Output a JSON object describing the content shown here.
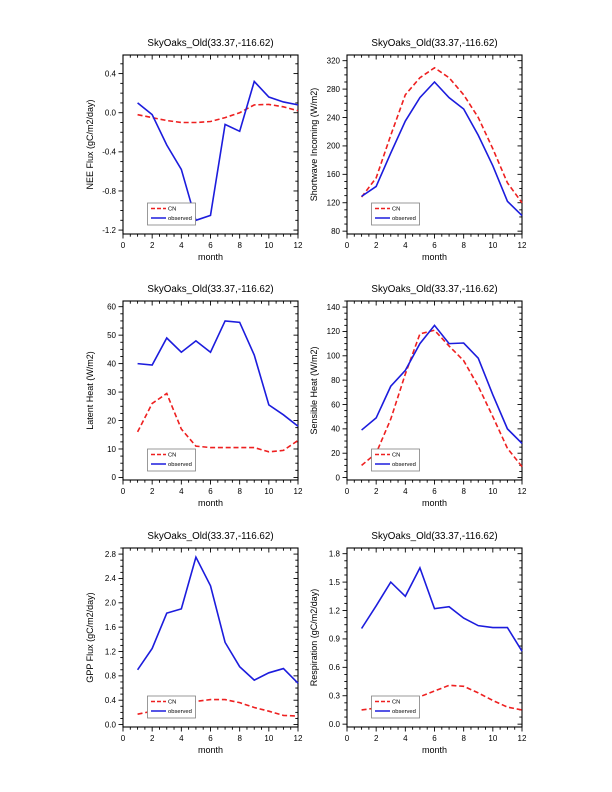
{
  "page": {
    "background": "#ffffff"
  },
  "legend": {
    "entries": [
      "CN",
      "observed"
    ],
    "position": "lower-left"
  },
  "chart_data": [
    {
      "type": "line",
      "title": "SkyOaks_Old(33.37,-116.62)",
      "xlabel": "month",
      "ylabel": "NEE Flux (gC/m2/day)",
      "xlim": [
        0,
        12
      ],
      "ylim": [
        -1.24,
        0.59
      ],
      "xticks": [
        0,
        2,
        4,
        6,
        8,
        10,
        12
      ],
      "xminor": 0.5,
      "yticks": [
        -1.2,
        -0.8,
        -0.4,
        0.0,
        0.4
      ],
      "ytick_labels": [
        "-1.2",
        "-0.8",
        "-0.4",
        "0.0",
        "0.4"
      ],
      "yminor": 0.1,
      "x": [
        1,
        2,
        3,
        4,
        5,
        6,
        7,
        8,
        9,
        10,
        11,
        12
      ],
      "grid": false,
      "legend_position": "lower-left",
      "series": [
        {
          "name": "CN",
          "color": "#ee2020",
          "style": "dashed",
          "values": [
            -0.02,
            -0.05,
            -0.08,
            -0.1,
            -0.1,
            -0.09,
            -0.05,
            0.0,
            0.08,
            0.085,
            0.06,
            0.02
          ]
        },
        {
          "name": "observed",
          "color": "#1c1cdd",
          "style": "solid",
          "values": [
            0.1,
            -0.02,
            -0.33,
            -0.58,
            -1.1,
            -1.05,
            -0.12,
            -0.19,
            0.32,
            0.16,
            0.11,
            0.08
          ]
        }
      ]
    },
    {
      "type": "line",
      "title": "SkyOaks_Old(33.37,-116.62)",
      "xlabel": "month",
      "ylabel": "Shortwave Incoming (W/m2)",
      "xlim": [
        0,
        12
      ],
      "ylim": [
        76,
        328
      ],
      "xticks": [
        0,
        2,
        4,
        6,
        8,
        10,
        12
      ],
      "xminor": 0.5,
      "yticks": [
        80,
        120,
        160,
        200,
        240,
        280,
        320
      ],
      "ytick_labels": [
        "80",
        "120",
        "160",
        "200",
        "240",
        "280",
        "320"
      ],
      "yminor": 10,
      "x": [
        1,
        2,
        3,
        4,
        5,
        6,
        7,
        8,
        9,
        10,
        11,
        12
      ],
      "grid": false,
      "legend_position": "lower-left",
      "series": [
        {
          "name": "CN",
          "color": "#ee2020",
          "style": "dashed",
          "values": [
            128,
            155,
            215,
            272,
            296,
            310,
            296,
            272,
            240,
            196,
            148,
            120
          ]
        },
        {
          "name": "observed",
          "color": "#1c1cdd",
          "style": "solid",
          "values": [
            129,
            143,
            190,
            235,
            268,
            290,
            268,
            252,
            215,
            172,
            122,
            102
          ]
        }
      ]
    },
    {
      "type": "line",
      "title": "SkyOaks_Old(33.37,-116.62)",
      "xlabel": "month",
      "ylabel": "Latent Heat (W/m2)",
      "xlim": [
        0,
        12
      ],
      "ylim": [
        -0.9,
        62
      ],
      "xticks": [
        0,
        2,
        4,
        6,
        8,
        10,
        12
      ],
      "xminor": 0.5,
      "yticks": [
        0,
        10,
        20,
        30,
        40,
        50,
        60
      ],
      "ytick_labels": [
        "0",
        "10",
        "20",
        "30",
        "40",
        "50",
        "60"
      ],
      "yminor": 2.5,
      "x": [
        1,
        2,
        3,
        4,
        5,
        6,
        7,
        8,
        9,
        10,
        11,
        12
      ],
      "grid": false,
      "legend_position": "lower-left",
      "series": [
        {
          "name": "CN",
          "color": "#ee2020",
          "style": "dashed",
          "values": [
            16,
            26,
            29.5,
            17,
            11,
            10.5,
            10.5,
            10.5,
            10.5,
            9,
            9.5,
            13
          ]
        },
        {
          "name": "observed",
          "color": "#1c1cdd",
          "style": "solid",
          "values": [
            40,
            39.5,
            49,
            44,
            48,
            44,
            55,
            54.5,
            43,
            25.5,
            22,
            18
          ]
        }
      ]
    },
    {
      "type": "line",
      "title": "SkyOaks_Old(33.37,-116.62)",
      "xlabel": "month",
      "ylabel": "Sensible Heat (W/m2)",
      "xlim": [
        0,
        12
      ],
      "ylim": [
        -2,
        145
      ],
      "xticks": [
        0,
        2,
        4,
        6,
        8,
        10,
        12
      ],
      "xminor": 0.5,
      "yticks": [
        0,
        20,
        40,
        60,
        80,
        100,
        120,
        140
      ],
      "ytick_labels": [
        "0",
        "20",
        "40",
        "60",
        "80",
        "100",
        "120",
        "140"
      ],
      "yminor": 5,
      "x": [
        1,
        2,
        3,
        4,
        5,
        6,
        7,
        8,
        9,
        10,
        11,
        12
      ],
      "grid": false,
      "legend_position": "lower-left",
      "series": [
        {
          "name": "CN",
          "color": "#ee2020",
          "style": "dashed",
          "values": [
            10,
            20,
            48,
            85,
            118,
            121,
            108,
            96,
            75,
            50,
            24,
            9
          ]
        },
        {
          "name": "observed",
          "color": "#1c1cdd",
          "style": "solid",
          "values": [
            39,
            49,
            75,
            88,
            110,
            125,
            110,
            110.5,
            98,
            68,
            40,
            28
          ]
        }
      ]
    },
    {
      "type": "line",
      "title": "SkyOaks_Old(33.37,-116.62)",
      "xlabel": "month",
      "ylabel": "GPP Flux (gC/m2/day)",
      "xlim": [
        0,
        12
      ],
      "ylim": [
        -0.04,
        2.9
      ],
      "xticks": [
        0,
        2,
        4,
        6,
        8,
        10,
        12
      ],
      "xminor": 0.5,
      "yticks": [
        0.0,
        0.4,
        0.8,
        1.2,
        1.6,
        2.0,
        2.4,
        2.8
      ],
      "ytick_labels": [
        "0.0",
        "0.4",
        "0.8",
        "1.2",
        "1.6",
        "2.0",
        "2.4",
        "2.8"
      ],
      "yminor": 0.1,
      "x": [
        1,
        2,
        3,
        4,
        5,
        6,
        7,
        8,
        9,
        10,
        11,
        12
      ],
      "grid": false,
      "legend_position": "lower-left",
      "series": [
        {
          "name": "CN",
          "color": "#ee2020",
          "style": "dashed",
          "values": [
            0.17,
            0.22,
            0.28,
            0.33,
            0.38,
            0.41,
            0.41,
            0.36,
            0.28,
            0.22,
            0.15,
            0.14
          ]
        },
        {
          "name": "observed",
          "color": "#1c1cdd",
          "style": "solid",
          "values": [
            0.9,
            1.25,
            1.83,
            1.9,
            2.75,
            2.28,
            1.35,
            0.95,
            0.73,
            0.85,
            0.92,
            0.68
          ]
        }
      ]
    },
    {
      "type": "line",
      "title": "SkyOaks_Old(33.37,-116.62)",
      "xlabel": "month",
      "ylabel": "Respiration (gC/m2/day)",
      "xlim": [
        0,
        12
      ],
      "ylim": [
        -0.03,
        1.86
      ],
      "xticks": [
        0,
        2,
        4,
        6,
        8,
        10,
        12
      ],
      "xminor": 0.5,
      "yticks": [
        0.0,
        0.3,
        0.6,
        0.9,
        1.2,
        1.5,
        1.8
      ],
      "ytick_labels": [
        "0.0",
        "0.3",
        "0.6",
        "0.9",
        "1.2",
        "1.5",
        "1.8"
      ],
      "yminor": 0.075,
      "x": [
        1,
        2,
        3,
        4,
        5,
        6,
        7,
        8,
        9,
        10,
        11,
        12
      ],
      "grid": false,
      "legend_position": "lower-left",
      "series": [
        {
          "name": "CN",
          "color": "#ee2020",
          "style": "dashed",
          "values": [
            0.15,
            0.17,
            0.2,
            0.24,
            0.29,
            0.35,
            0.41,
            0.4,
            0.33,
            0.25,
            0.18,
            0.15
          ]
        },
        {
          "name": "observed",
          "color": "#1c1cdd",
          "style": "solid",
          "values": [
            1.01,
            1.25,
            1.5,
            1.35,
            1.65,
            1.22,
            1.24,
            1.12,
            1.04,
            1.02,
            1.02,
            0.77
          ]
        }
      ]
    }
  ]
}
